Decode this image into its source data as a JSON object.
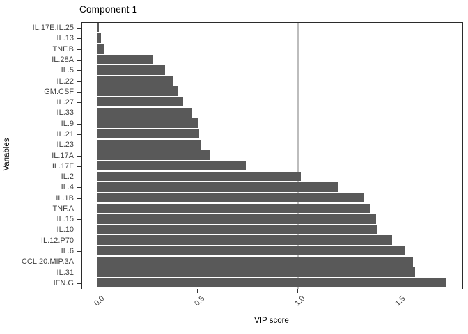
{
  "chart_data": {
    "type": "bar",
    "orientation": "horizontal",
    "title": "Component 1",
    "xlabel": "VIP score",
    "ylabel": "Variables",
    "xlim": [
      0,
      1.82
    ],
    "x_ticks": [
      0,
      0.5,
      1.0,
      1.5
    ],
    "x_tick_labels": [
      "0.0",
      "0.5",
      "1.0",
      "1.5"
    ],
    "reference_line_x": 1.0,
    "grid": "off",
    "legend": "none",
    "bar_color": "#595959",
    "reference_line_color": "#bdbdbd",
    "categories_top_to_bottom": [
      "IL.17E.IL.25",
      "IL.13",
      "TNF.B",
      "IL.28A",
      "IL.5",
      "IL.22",
      "GM.CSF",
      "IL.27",
      "IL.33",
      "IL.9",
      "IL.21",
      "IL.23",
      "IL.17A",
      "IL.17F",
      "IL.2",
      "IL.4",
      "IL.1B",
      "TNF.A",
      "IL.15",
      "IL.10",
      "IL.12.P70",
      "IL.6",
      "CCL.20.MIP.3A",
      "IL.31",
      "IFN.G"
    ],
    "values": [
      0.007,
      0.02,
      0.033,
      0.275,
      0.34,
      0.375,
      0.4,
      0.43,
      0.475,
      0.505,
      0.51,
      0.515,
      0.56,
      0.74,
      1.015,
      1.2,
      1.33,
      1.36,
      1.39,
      1.395,
      1.47,
      1.535,
      1.575,
      1.585,
      1.74
    ]
  }
}
